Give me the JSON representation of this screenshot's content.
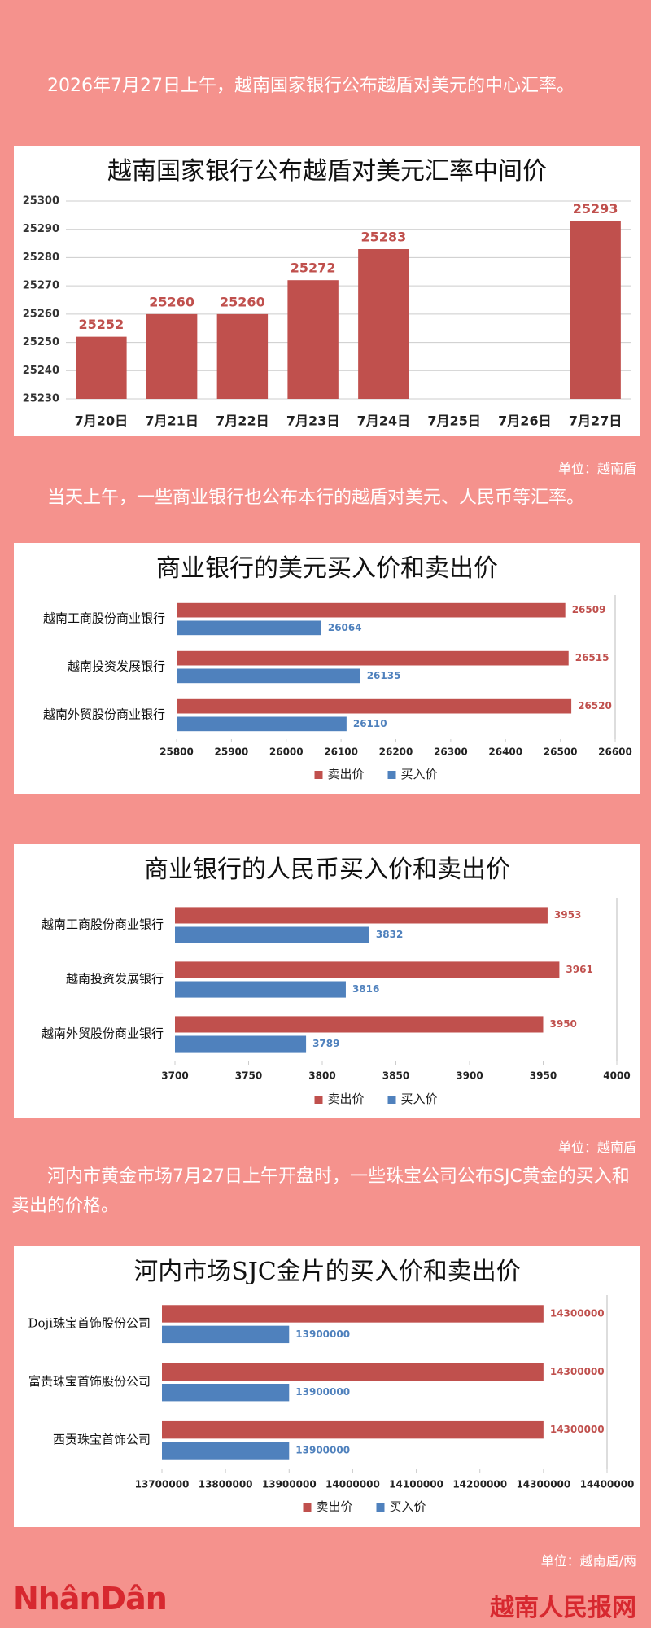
{
  "paragraphs": [
    "2026年7月27日上午，越南国家银行公布越盾对美元的中心汇率。",
    "当天上午，一些商业银行也公布本行的越盾对美元、人民币等汇率。",
    "河内市黄金市场7月27日上午开盘时，一些珠宝公司公布SJC黄金的买入和卖出的价格。"
  ],
  "units": [
    "单位：越南盾",
    "单位：越南盾",
    "单位：越南盾/两"
  ],
  "footer": {
    "logo": "NhânDân",
    "site": "越南人民报网"
  },
  "chart_data": [
    {
      "type": "bar",
      "title": "越南国家银行公布越盾对美元汇率中间价",
      "categories": [
        "7月20日",
        "7月21日",
        "7月22日",
        "7月23日",
        "7月24日",
        "7月25日",
        "7月26日",
        "7月27日"
      ],
      "values": [
        25252,
        25260,
        25260,
        25272,
        25283,
        null,
        null,
        25293
      ],
      "color": "#c0504d",
      "ylim": [
        25230,
        25300
      ],
      "yticks": [
        25230,
        25240,
        25250,
        25260,
        25270,
        25280,
        25290,
        25300
      ],
      "grid": true
    },
    {
      "type": "barh",
      "title": "商业银行的美元买入价和卖出价",
      "categories": [
        "越南工商股份商业银行",
        "越南投资发展银行",
        "越南外贸股份商业银行"
      ],
      "series": [
        {
          "name": "卖出价",
          "color": "#c0504d",
          "values": [
            26509,
            26515,
            26520
          ]
        },
        {
          "name": "买入价",
          "color": "#4f81bd",
          "values": [
            26064,
            26135,
            26110
          ]
        }
      ],
      "xlim": [
        25800,
        26600
      ],
      "xticks": [
        25800,
        25900,
        26000,
        26100,
        26200,
        26300,
        26400,
        26500,
        26600
      ],
      "grid": false,
      "legend": "bottom"
    },
    {
      "type": "barh",
      "title": "商业银行的人民币买入价和卖出价",
      "categories": [
        "越南工商股份商业银行",
        "越南投资发展银行",
        "越南外贸股份商业银行"
      ],
      "series": [
        {
          "name": "卖出价",
          "color": "#c0504d",
          "values": [
            3953,
            3961,
            3950
          ]
        },
        {
          "name": "买入价",
          "color": "#4f81bd",
          "values": [
            3832,
            3816,
            3789
          ]
        }
      ],
      "xlim": [
        3700,
        4000
      ],
      "xticks": [
        3700,
        3750,
        3800,
        3850,
        3900,
        3950,
        4000
      ],
      "grid": false,
      "legend": "bottom"
    },
    {
      "type": "barh",
      "title": "河内市场SJC金片的买入价和卖出价",
      "categories": [
        "Doji珠宝首饰股份公司",
        "富贵珠宝首饰股份公司",
        "西贡珠宝首饰公司"
      ],
      "series": [
        {
          "name": "卖出价",
          "color": "#c0504d",
          "values": [
            14300000,
            14300000,
            14300000
          ]
        },
        {
          "name": "买入价",
          "color": "#4f81bd",
          "values": [
            13900000,
            13900000,
            13900000
          ]
        }
      ],
      "xlim": [
        13700000,
        14400000
      ],
      "xticks": [
        13700000,
        13800000,
        13900000,
        14000000,
        14100000,
        14200000,
        14300000,
        14400000
      ],
      "grid": false,
      "legend": "bottom"
    }
  ]
}
